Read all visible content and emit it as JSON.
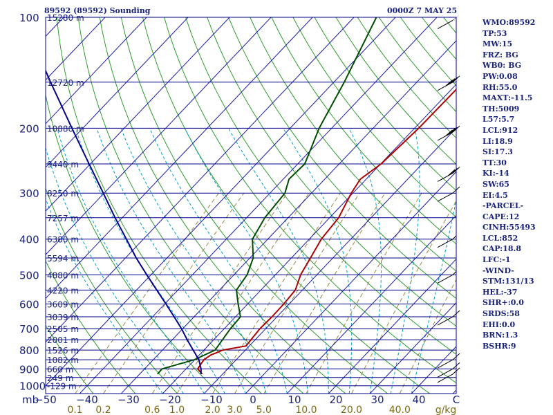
{
  "header": {
    "station_title": "89592 (89592) Sounding",
    "valid_time": "0000Z  7 MAY 25"
  },
  "chart_data": {
    "type": "line",
    "title": "89592 (89592) Sounding",
    "y_axis_corner_label": "mb",
    "mixing_ratio_unit": "g/kg",
    "pressure_ticks": [
      100,
      200,
      300,
      400,
      500,
      600,
      700,
      800,
      900,
      1000
    ],
    "temperature_ticks": [
      -50,
      -40,
      -30,
      -20,
      -10,
      0,
      10,
      20,
      30,
      40
    ],
    "temperature_end_label": "C",
    "mixing_ratio_ticks": [
      "0.1",
      "0.2",
      "0.6",
      "1.0",
      "2.0",
      "3.0",
      "5.0",
      "10.0",
      "20.0",
      "40.0"
    ],
    "mixing_ratio_values": [
      0.1,
      0.2,
      0.6,
      1.0,
      2.0,
      3.0,
      5.0,
      10.0,
      20.0,
      40.0
    ],
    "height_labels": [
      {
        "p": 100,
        "text": "15280 m"
      },
      {
        "p": 150,
        "text": "12720 m"
      },
      {
        "p": 200,
        "text": "10880 m"
      },
      {
        "p": 250,
        "text": "9440 m"
      },
      {
        "p": 300,
        "text": "8250 m"
      },
      {
        "p": 350,
        "text": "7257 m"
      },
      {
        "p": 400,
        "text": "6380 m"
      },
      {
        "p": 450,
        "text": "5594 m"
      },
      {
        "p": 500,
        "text": "4880 m"
      },
      {
        "p": 550,
        "text": "4220 m"
      },
      {
        "p": 600,
        "text": "3609 m"
      },
      {
        "p": 650,
        "text": "3039 m"
      },
      {
        "p": 700,
        "text": "2505 m"
      },
      {
        "p": 750,
        "text": "2001 m"
      },
      {
        "p": 800,
        "text": "1526 m"
      },
      {
        "p": 850,
        "text": "1082 m"
      },
      {
        "p": 900,
        "text": "660 m"
      },
      {
        "p": 950,
        "text": "249 m"
      },
      {
        "p": 1000,
        "text": "-129 m"
      }
    ],
    "series": [
      {
        "key": "temperature",
        "color": "#b00000",
        "points": [
          [
            930,
            -14.9
          ],
          [
            900,
            -17.2
          ],
          [
            850,
            -17.8
          ],
          [
            825,
            -17.2
          ],
          [
            800,
            -15.4
          ],
          [
            780,
            -10.8
          ],
          [
            700,
            -11.4
          ],
          [
            650,
            -11.2
          ],
          [
            600,
            -11.3
          ],
          [
            550,
            -11.7
          ],
          [
            500,
            -13.9
          ],
          [
            450,
            -15.4
          ],
          [
            400,
            -17.1
          ],
          [
            350,
            -17.8
          ],
          [
            300,
            -20.4
          ],
          [
            275,
            -21.4
          ],
          [
            250,
            -19.9
          ],
          [
            200,
            -19.0
          ],
          [
            150,
            -18.8
          ],
          [
            100,
            -11.6
          ]
        ]
      },
      {
        "key": "dewpoint",
        "color": "#004d00",
        "points": [
          [
            930,
            -25.7
          ],
          [
            900,
            -25.8
          ],
          [
            850,
            -20.1
          ],
          [
            800,
            -17.3
          ],
          [
            700,
            -18.5
          ],
          [
            650,
            -18.8
          ],
          [
            600,
            -22.3
          ],
          [
            550,
            -25.9
          ],
          [
            500,
            -26.8
          ],
          [
            450,
            -29.2
          ],
          [
            400,
            -33.7
          ],
          [
            350,
            -35.6
          ],
          [
            300,
            -36.4
          ],
          [
            275,
            -38.6
          ],
          [
            250,
            -38.3
          ],
          [
            200,
            -43.0
          ],
          [
            150,
            -47.5
          ],
          [
            100,
            -54.6
          ]
        ]
      },
      {
        "key": "parcel",
        "color": "#00008b",
        "points": [
          [
            930,
            -15.2
          ],
          [
            900,
            -16.4
          ],
          [
            850,
            -19.0
          ],
          [
            800,
            -22.6
          ],
          [
            750,
            -26.4
          ],
          [
            700,
            -30.3
          ],
          [
            650,
            -34.8
          ],
          [
            600,
            -39.7
          ],
          [
            550,
            -45.1
          ],
          [
            500,
            -51.0
          ],
          [
            450,
            -57.4
          ],
          [
            400,
            -64.1
          ],
          [
            350,
            -71.7
          ],
          [
            300,
            -80.2
          ],
          [
            250,
            -90.3
          ],
          [
            200,
            -102.6
          ],
          [
            150,
            -118.3
          ],
          [
            100,
            -140.0
          ]
        ]
      }
    ],
    "wind_barbs": [
      {
        "p": 102,
        "speed": 50
      },
      {
        "p": 150,
        "speed": 40
      },
      {
        "p": 205,
        "speed": 40
      },
      {
        "p": 265,
        "speed": 30
      },
      {
        "p": 300,
        "speed": 10
      },
      {
        "p": 400,
        "speed": 5
      },
      {
        "p": 500,
        "speed": 5
      },
      {
        "p": 650,
        "speed": 10
      },
      {
        "p": 850,
        "speed": 10
      },
      {
        "p": 900,
        "speed": 10
      },
      {
        "p": 930,
        "speed": 10
      }
    ],
    "colors": {
      "isobar": "#00008b",
      "isotherm": "#1a1aa8",
      "dry_adiabat": "#2e9b2e",
      "moist_adiabat": "#00a0c8",
      "mixing_ratio": "#9a8a40",
      "text": "#1a237e",
      "axis_labels": "#1a237e",
      "mixing_labels": "#7a6a10"
    },
    "grid": true
  },
  "panel": {
    "lines": [
      "WMO:89592",
      "TP:53",
      "MW:15",
      "FRZ: BG",
      "WB0: BG",
      "PW:0.08",
      "RH:55.0",
      "MAXT:-11.5",
      "TH:5009",
      "L57:5.7",
      "LCL:912",
      "LI:18.9",
      "SI:17.3",
      "TT:30",
      "KI:-14",
      "SW:65",
      "EI:4.5",
      "-PARCEL-",
      "CAPE:12",
      "CINH:55493",
      "LCL:852",
      "CAP:18.8",
      "LFC:-1",
      "-WIND-",
      "STM:131/13",
      "HEL:-37",
      "SHR+:0.0",
      "SRDS:58",
      "EHI:0.0",
      "BRN:1.3",
      "BSHR:9"
    ]
  }
}
